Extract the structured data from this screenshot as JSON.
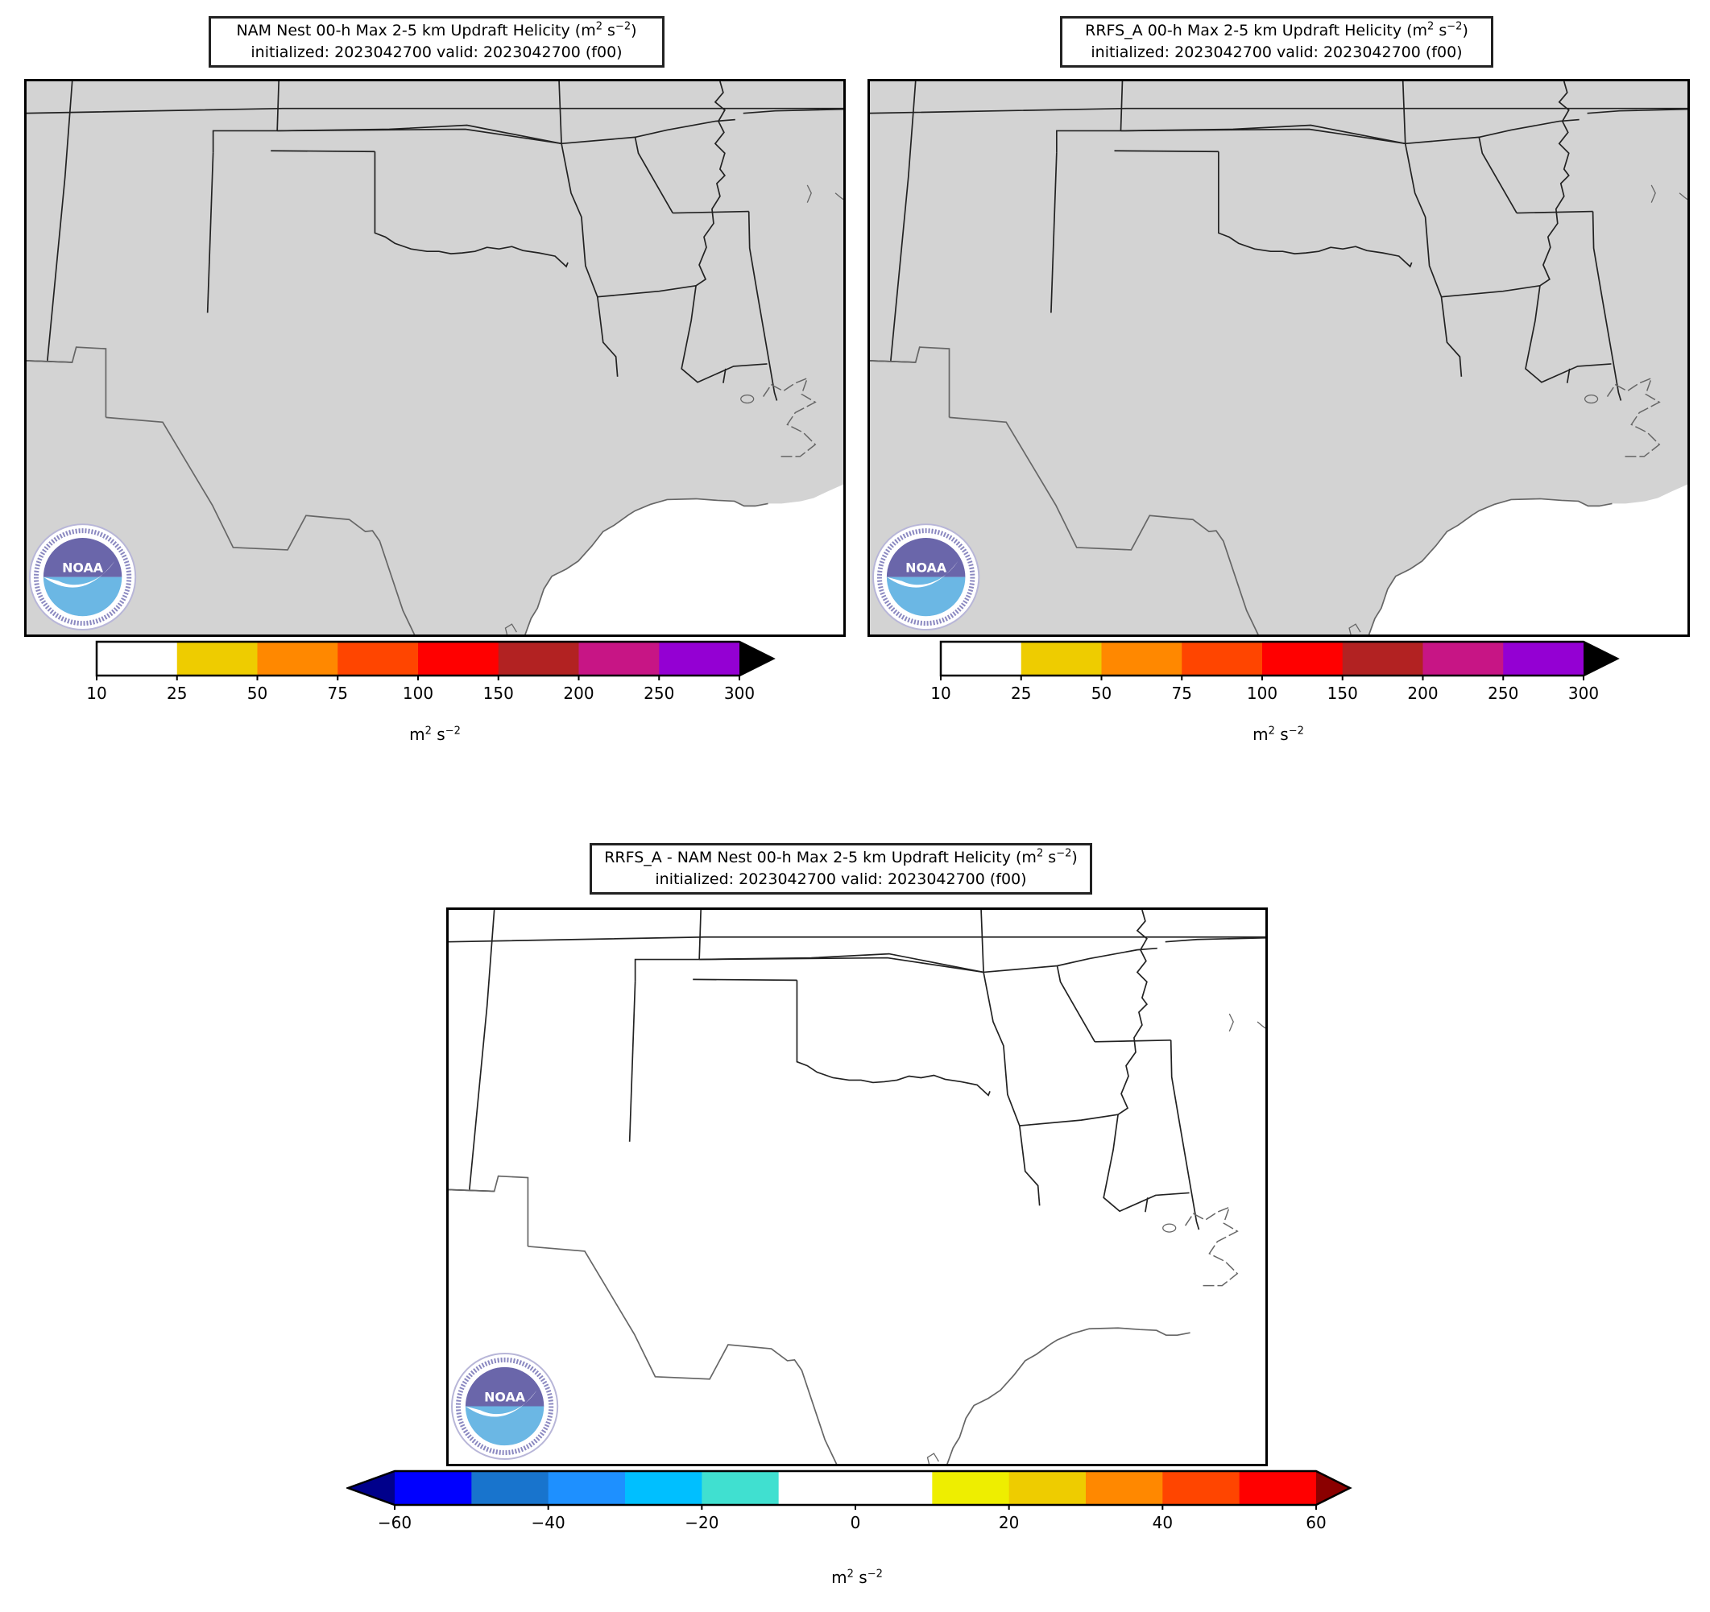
{
  "panels": [
    {
      "id": "nam",
      "title_line1": "NAM Nest 00-h Max 2-5 km Updraft Helicity (m",
      "title_sup1": "2",
      "title_mid": " s",
      "title_sup2": "−2",
      "title_end": ")",
      "title_line2": "initialized: 2023042700 valid: 2023042700 (f00)",
      "land_color": "#d3d3d3",
      "units": "m",
      "units_sup1": "2",
      "units_mid": " s",
      "units_sup2": "−2"
    },
    {
      "id": "rrfs",
      "title_line1": "RRFS_A 00-h Max 2-5 km Updraft Helicity (m",
      "title_sup1": "2",
      "title_mid": " s",
      "title_sup2": "−2",
      "title_end": ")",
      "title_line2": "initialized: 2023042700 valid: 2023042700 (f00)",
      "land_color": "#d3d3d3",
      "units": "m",
      "units_sup1": "2",
      "units_mid": " s",
      "units_sup2": "−2"
    },
    {
      "id": "diff",
      "title_line1": "RRFS_A - NAM Nest 00-h Max 2-5 km Updraft Helicity (m",
      "title_sup1": "2",
      "title_mid": " s",
      "title_sup2": "−2",
      "title_end": ")",
      "title_line2": "initialized: 2023042700 valid: 2023042700 (f00)",
      "land_color": "#ffffff",
      "units": "m",
      "units_sup1": "2",
      "units_mid": " s",
      "units_sup2": "−2"
    }
  ],
  "colorbar_uh": {
    "ticks": [
      "10",
      "25",
      "50",
      "75",
      "100",
      "150",
      "200",
      "250",
      "300"
    ],
    "colors": [
      "#ffffff",
      "#eecc00",
      "#ff8800",
      "#ff4500",
      "#ff0000",
      "#b22222",
      "#c71585",
      "#9400d3"
    ],
    "extend_max_color": "#000000"
  },
  "colorbar_diff": {
    "ticks": [
      "−60",
      "−40",
      "−20",
      "0",
      "20",
      "40",
      "60"
    ],
    "colors": [
      "#0000ff",
      "#1874cd",
      "#1e90ff",
      "#00bfff",
      "#40e0d0",
      "#ffffff",
      "#ffffff",
      "#eeee00",
      "#eecc00",
      "#ff8800",
      "#ff4500",
      "#ff0000"
    ],
    "extend_min_color": "#00008b",
    "extend_max_color": "#8b0000"
  },
  "logo": {
    "text": "NOAA",
    "ring_text": "NATIONAL OCEANIC AND ATMOSPHERIC ADMINISTRATION",
    "ring_text_bottom": "U.S. DEPARTMENT OF COMMERCE",
    "color_top": "#6a66aa",
    "color_bottom": "#6bb7e4"
  }
}
